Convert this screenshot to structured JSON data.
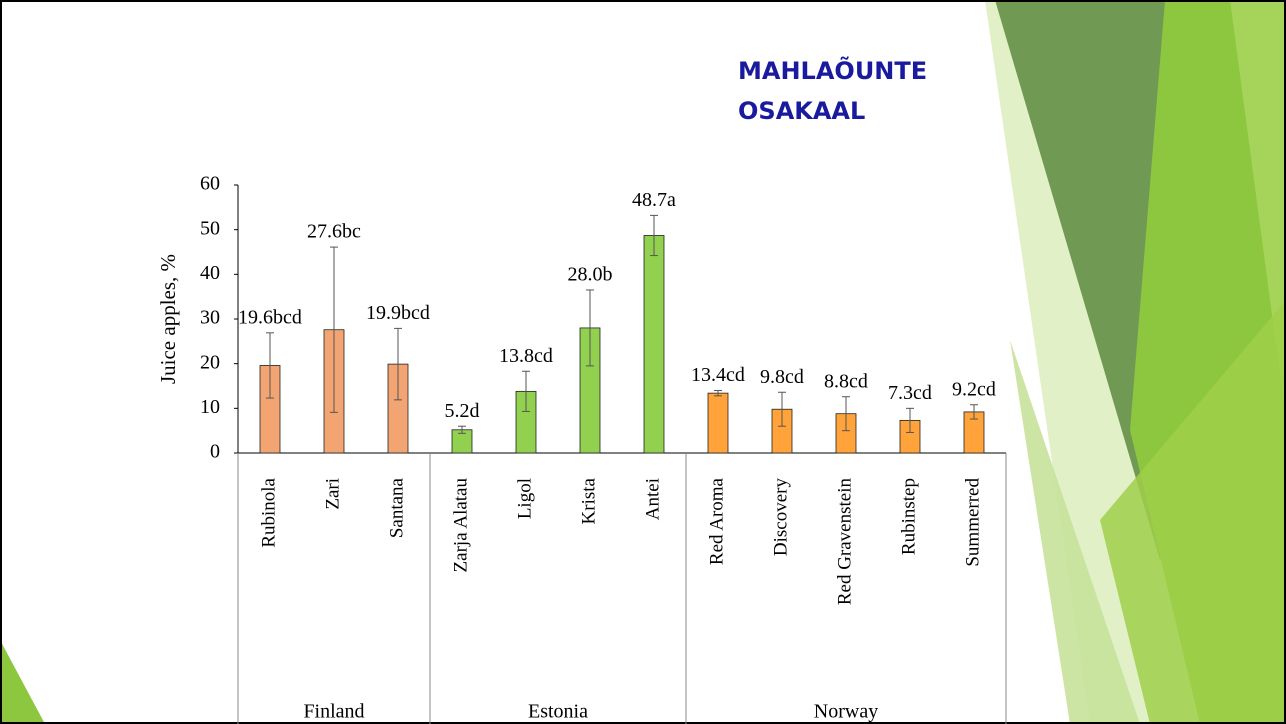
{
  "chart_data": {
    "type": "bar",
    "title": [
      "MAHLAÕUNTE",
      "OSAKAAL"
    ],
    "ylabel": "Juice apples, %",
    "ylim": [
      0,
      60
    ],
    "yticks": [
      0,
      10,
      20,
      30,
      40,
      50,
      60
    ],
    "groups": [
      {
        "name": "Finland",
        "color": "#f2a572",
        "categories": [
          "Rubinola",
          "Zari",
          "Santana"
        ],
        "values": [
          19.6,
          27.6,
          19.9
        ],
        "errors": [
          7.3,
          18.5,
          8
        ],
        "value_labels": [
          "19.6bcd",
          "27.6bc",
          "19.9bcd"
        ]
      },
      {
        "name": "Estonia",
        "color": "#92d050",
        "categories": [
          "Zarja Alatau",
          "Ligol",
          "Krista",
          "Antei"
        ],
        "values": [
          5.2,
          13.8,
          28.0,
          48.7
        ],
        "errors": [
          0.8,
          4.5,
          8.5,
          4.5
        ],
        "value_labels": [
          "5.2d",
          "13.8cd",
          "28.0b",
          "48.7a"
        ]
      },
      {
        "name": "Norway",
        "color": "#ffa33a",
        "categories": [
          "Red Aroma",
          "Discovery",
          "Red Gravenstein",
          "Rubinstep",
          "Summerred"
        ],
        "values": [
          13.4,
          9.8,
          8.8,
          7.3,
          9.2
        ],
        "errors": [
          0.6,
          3.8,
          3.8,
          2.7,
          1.6
        ],
        "value_labels": [
          "13.4cd",
          "9.8cd",
          "8.8cd",
          "7.3cd",
          "9.2cd"
        ]
      }
    ]
  }
}
